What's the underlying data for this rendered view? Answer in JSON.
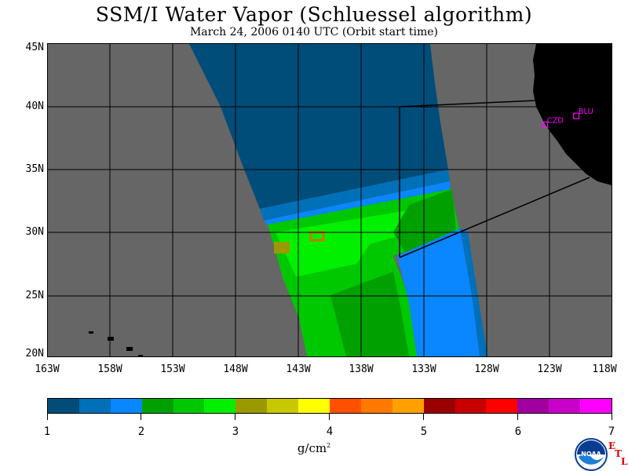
{
  "title": "SSM/I Water Vapor (Schluessel algorithm)",
  "subtitle": "March 24, 2006  0140 UTC  (Orbit start time)",
  "latitude_labels": [
    "45N",
    "40N",
    "35N",
    "30N",
    "25N",
    "20N"
  ],
  "longitude_labels": [
    "163W",
    "158W",
    "153W",
    "148W",
    "143W",
    "138W",
    "133W",
    "128W",
    "123W",
    "118W"
  ],
  "stations": [
    {
      "name": "CZD",
      "lon": -123.4,
      "lat": 38.6
    },
    {
      "name": "BLU",
      "lon": -120.9,
      "lat": 39.3
    }
  ],
  "colorbar": {
    "unit": "g/cm",
    "unit_exp": "2",
    "tick_labels": [
      "1",
      "2",
      "3",
      "4",
      "5",
      "6",
      "7"
    ],
    "colors": [
      "#004d7a",
      "#0070b8",
      "#0a86ff",
      "#00a000",
      "#00c800",
      "#00f000",
      "#9a9a00",
      "#c8c800",
      "#ffff00",
      "#ff5000",
      "#ff7800",
      "#ffa000",
      "#9a0000",
      "#c80000",
      "#ff0000",
      "#a000a0",
      "#c800c8",
      "#ff00ff"
    ]
  },
  "colors": {
    "land": "#000000",
    "no_data": "#666666",
    "grid": "#000000",
    "station": "#ff00ff",
    "etl": "#e00000"
  },
  "logo": {
    "text": "NOAA",
    "suffix_letters": [
      "E",
      "T",
      "L"
    ]
  }
}
